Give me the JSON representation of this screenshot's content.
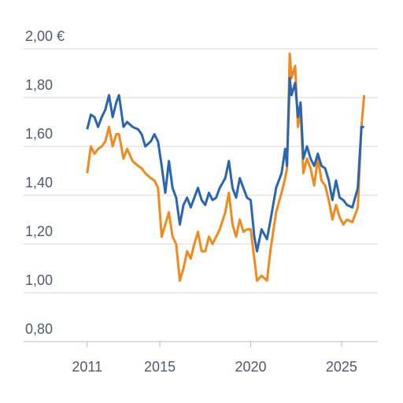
{
  "chart_data": {
    "type": "line",
    "x": [
      2011.0,
      2011.2,
      2011.4,
      2011.6,
      2011.8,
      2012.0,
      2012.2,
      2012.4,
      2012.6,
      2012.75,
      2013.0,
      2013.2,
      2013.5,
      2013.8,
      2014.0,
      2014.2,
      2014.5,
      2014.7,
      2014.9,
      2015.1,
      2015.3,
      2015.5,
      2015.7,
      2015.9,
      2016.1,
      2016.3,
      2016.5,
      2016.7,
      2016.9,
      2017.1,
      2017.3,
      2017.5,
      2017.7,
      2017.9,
      2018.1,
      2018.3,
      2018.6,
      2018.8,
      2019.0,
      2019.2,
      2019.4,
      2019.6,
      2019.8,
      2020.0,
      2020.2,
      2020.35,
      2020.6,
      2020.9,
      2021.1,
      2021.4,
      2021.7,
      2021.9,
      2022.0,
      2022.15,
      2022.25,
      2022.45,
      2022.6,
      2022.75,
      2022.9,
      2023.1,
      2023.3,
      2023.5,
      2023.7,
      2023.9,
      2024.1,
      2024.3,
      2024.5,
      2024.7,
      2024.9,
      2025.1,
      2025.3,
      2025.6,
      2025.9,
      2026.1,
      2026.25
    ],
    "series": [
      {
        "color": "#f08a1c",
        "values": [
          1.49,
          1.6,
          1.57,
          1.59,
          1.6,
          1.62,
          1.68,
          1.6,
          1.65,
          1.65,
          1.55,
          1.59,
          1.54,
          1.52,
          1.51,
          1.49,
          1.47,
          1.46,
          1.43,
          1.23,
          1.28,
          1.33,
          1.23,
          1.2,
          1.05,
          1.1,
          1.17,
          1.14,
          1.2,
          1.25,
          1.17,
          1.17,
          1.23,
          1.2,
          1.23,
          1.26,
          1.33,
          1.41,
          1.28,
          1.23,
          1.3,
          1.25,
          1.26,
          1.26,
          1.14,
          1.05,
          1.07,
          1.05,
          1.18,
          1.33,
          1.41,
          1.47,
          1.51,
          1.98,
          1.88,
          1.93,
          1.68,
          1.75,
          1.49,
          1.55,
          1.51,
          1.44,
          1.55,
          1.46,
          1.44,
          1.38,
          1.3,
          1.36,
          1.31,
          1.28,
          1.3,
          1.29,
          1.35,
          1.68,
          1.81
        ]
      },
      {
        "color": "#2a66b0",
        "values": [
          1.67,
          1.73,
          1.72,
          1.68,
          1.72,
          1.75,
          1.81,
          1.72,
          1.78,
          1.81,
          1.68,
          1.7,
          1.68,
          1.67,
          1.65,
          1.6,
          1.62,
          1.65,
          1.62,
          1.52,
          1.41,
          1.54,
          1.43,
          1.39,
          1.28,
          1.36,
          1.39,
          1.35,
          1.39,
          1.43,
          1.38,
          1.36,
          1.41,
          1.38,
          1.39,
          1.43,
          1.47,
          1.54,
          1.43,
          1.39,
          1.47,
          1.43,
          1.39,
          1.38,
          1.23,
          1.17,
          1.26,
          1.22,
          1.3,
          1.43,
          1.49,
          1.59,
          1.52,
          1.88,
          1.81,
          1.86,
          1.72,
          1.78,
          1.55,
          1.6,
          1.55,
          1.52,
          1.57,
          1.52,
          1.51,
          1.46,
          1.38,
          1.46,
          1.39,
          1.38,
          1.36,
          1.35,
          1.43,
          1.68,
          1.68
        ]
      }
    ],
    "xlim": [
      2007.5,
      2027
    ],
    "xticks": [
      2011,
      2015,
      2020,
      2025
    ],
    "ylim": [
      0.8,
      2.0
    ],
    "yticks": [
      {
        "value": 0.8,
        "label": "0,80"
      },
      {
        "value": 1.0,
        "label": "1,00"
      },
      {
        "value": 1.2,
        "label": "1,20"
      },
      {
        "value": 1.4,
        "label": "1,40"
      },
      {
        "value": 1.6,
        "label": "1,60"
      },
      {
        "value": 1.8,
        "label": "1,80"
      },
      {
        "value": 2.0,
        "label": "2,00 €"
      }
    ],
    "grid": true
  }
}
